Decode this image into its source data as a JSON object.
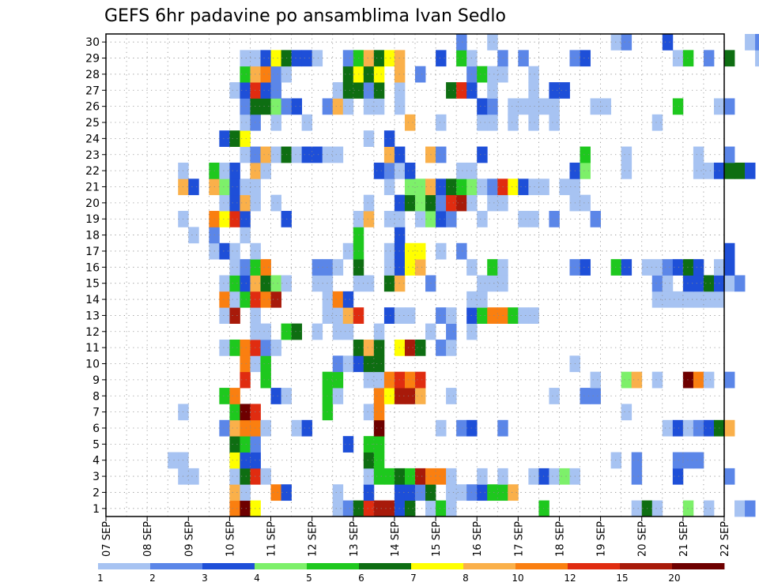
{
  "chart_data": {
    "type": "heatmap",
    "title": "GEFS 6hr padavine po ansamblima Ivan Sedlo",
    "y_categories": [
      "1",
      "2",
      "3",
      "4",
      "5",
      "6",
      "7",
      "8",
      "9",
      "10",
      "11",
      "12",
      "13",
      "14",
      "15",
      "16",
      "17",
      "18",
      "19",
      "20",
      "21",
      "22",
      "23",
      "24",
      "25",
      "26",
      "27",
      "28",
      "29",
      "30"
    ],
    "x_ticks": [
      "07 SEP",
      "08 SEP",
      "09 SEP",
      "10 SEP",
      "11 SEP",
      "12 SEP",
      "13 SEP",
      "14 SEP",
      "15 SEP",
      "16 SEP",
      "17 SEP",
      "18 SEP",
      "19 SEP",
      "20 SEP",
      "21 SEP",
      "22 SEP"
    ],
    "x_range": [
      "07 SEP 00Z",
      "22 SEP 00Z"
    ],
    "time_step": "6hr",
    "grid": true,
    "colorbar": {
      "placement": "bottom",
      "labels": [
        "1",
        "2",
        "3",
        "4",
        "5",
        "6",
        "7",
        "8",
        "10",
        "12",
        "15",
        "20"
      ],
      "colors": [
        "#a7c3f2",
        "#5b86e8",
        "#1e4fd8",
        "#7df06a",
        "#1ec81e",
        "#0e6e12",
        "#ffff00",
        "#fab04a",
        "#fa7f10",
        "#e02c10",
        "#a81a0a",
        "#6e0000"
      ]
    },
    "grid_values": {
      "30": {
        "34": 2,
        "37": 1,
        "49": 1,
        "50": 2,
        "54": 3,
        "62": 1,
        "63": 2
      },
      "29": {
        "13": 1,
        "14": 1,
        "15": 3,
        "16": 7,
        "17": 6,
        "18": 3,
        "19": 3,
        "20": 1,
        "23": 2,
        "24": 5,
        "25": 8,
        "26": 6,
        "27": 7,
        "28": 9,
        "32": 3,
        "34": 5,
        "35": 1,
        "38": 2,
        "40": 2,
        "45": 2,
        "46": 3,
        "55": 1,
        "56": 5,
        "58": 2,
        "60": 6,
        "63": 1,
        "64": 9,
        "65": 1,
        "66": 3,
        "67": 3
      },
      "28": {
        "13": 5,
        "14": 9,
        "15": 10,
        "16": 2,
        "17": 1,
        "23": 6,
        "24": 7,
        "25": 6,
        "26": 7,
        "28": 8,
        "30": 2,
        "35": 2,
        "36": 5,
        "37": 1,
        "38": 1,
        "41": 1
      },
      "27": {
        "12": 1,
        "13": 3,
        "14": 12,
        "15": 3,
        "16": 2,
        "22": 1,
        "23": 6,
        "24": 6,
        "25": 2,
        "26": 6,
        "28": 1,
        "33": 6,
        "34": 12,
        "35": 3,
        "37": 1,
        "41": 1,
        "43": 3,
        "44": 3
      },
      "26": {
        "13": 2,
        "14": 6,
        "15": 6,
        "16": 4,
        "17": 2,
        "18": 3,
        "21": 2,
        "22": 9,
        "23": 1,
        "25": 1,
        "26": 1,
        "28": 1,
        "36": 3,
        "37": 2,
        "39": 1,
        "40": 1,
        "41": 1,
        "42": 1,
        "43": 1,
        "47": 1,
        "48": 1,
        "55": 5,
        "59": 1,
        "60": 2
      },
      "25": {
        "13": 1,
        "14": 2,
        "16": 1,
        "19": 1,
        "29": 9,
        "32": 1,
        "36": 1,
        "37": 1,
        "39": 1,
        "41": 1,
        "43": 1,
        "53": 1
      },
      "24": {
        "11": 3,
        "12": 6,
        "13": 7,
        "25": 1,
        "27": 3
      },
      "23": {
        "13": 1,
        "14": 2,
        "15": 8,
        "16": 1,
        "17": 6,
        "18": 1,
        "19": 3,
        "20": 3,
        "21": 1,
        "22": 1,
        "27": 8,
        "28": 3,
        "31": 8,
        "32": 2,
        "36": 3,
        "46": 5,
        "50": 1,
        "57": 1,
        "60": 2
      },
      "22": {
        "7": 1,
        "10": 5,
        "11": 1,
        "12": 3,
        "14": 8,
        "15": 1,
        "26": 3,
        "27": 2,
        "28": 1,
        "29": 3,
        "34": 1,
        "35": 1,
        "45": 3,
        "46": 4,
        "50": 1,
        "57": 1,
        "58": 1,
        "59": 3,
        "60": 6,
        "61": 6,
        "62": 3
      },
      "21": {
        "7": 8,
        "8": 3,
        "10": 9,
        "11": 4,
        "12": 3,
        "13": 1,
        "14": 1,
        "27": 1,
        "29": 4,
        "30": 4,
        "31": 8,
        "32": 3,
        "33": 6,
        "34": 5,
        "35": 4,
        "36": 1,
        "37": 2,
        "38": 12,
        "39": 7,
        "40": 3,
        "41": 1,
        "42": 1,
        "44": 1,
        "45": 1
      },
      "20": {
        "11": 1,
        "12": 3,
        "13": 9,
        "14": 1,
        "16": 1,
        "25": 1,
        "28": 3,
        "29": 6,
        "30": 4,
        "31": 6,
        "32": 2,
        "33": 12,
        "34": 15,
        "35": 1,
        "37": 1,
        "38": 1,
        "45": 1,
        "46": 1
      },
      "19": {
        "7": 1,
        "10": 10,
        "11": 7,
        "12": 12,
        "13": 3,
        "17": 3,
        "24": 1,
        "25": 8,
        "27": 1,
        "28": 1,
        "30": 1,
        "31": 4,
        "32": 3,
        "33": 2,
        "36": 1,
        "40": 1,
        "41": 1,
        "43": 2,
        "47": 2
      },
      "18": {
        "8": 1,
        "10": 2,
        "13": 1,
        "24": 5,
        "28": 3
      },
      "17": {
        "10": 1,
        "11": 3,
        "12": 1,
        "14": 1,
        "23": 1,
        "24": 5,
        "27": 1,
        "28": 3,
        "29": 7,
        "30": 7,
        "32": 1,
        "34": 2,
        "60": 3
      },
      "16": {
        "12": 1,
        "13": 2,
        "14": 5,
        "15": 10,
        "20": 2,
        "21": 2,
        "22": 1,
        "24": 6,
        "27": 1,
        "28": 3,
        "29": 7,
        "30": 9,
        "35": 1,
        "37": 5,
        "38": 1,
        "45": 2,
        "46": 3,
        "49": 5,
        "50": 3,
        "52": 1,
        "53": 1,
        "54": 2,
        "55": 3,
        "56": 6,
        "57": 3,
        "59": 1,
        "60": 3
      },
      "15": {
        "11": 1,
        "12": 5,
        "13": 3,
        "14": 8,
        "15": 6,
        "16": 4,
        "17": 1,
        "20": 1,
        "21": 1,
        "24": 1,
        "25": 1,
        "27": 6,
        "28": 9,
        "31": 2,
        "36": 1,
        "37": 1,
        "38": 1,
        "53": 2,
        "54": 1,
        "56": 3,
        "57": 3,
        "58": 6,
        "59": 3,
        "60": 1,
        "61": 2
      },
      "14": {
        "11": 10,
        "12": 1,
        "13": 5,
        "14": 12,
        "15": 10,
        "16": 15,
        "21": 1,
        "22": 11,
        "23": 3,
        "35": 1,
        "36": 1,
        "53": 1,
        "54": 1,
        "55": 1,
        "56": 1,
        "57": 1,
        "58": 1,
        "59": 1
      },
      "13": {
        "11": 1,
        "12": 15,
        "14": 1,
        "21": 1,
        "22": 1,
        "23": 8,
        "24": 12,
        "27": 3,
        "28": 1,
        "29": 1,
        "32": 2,
        "33": 1,
        "35": 3,
        "36": 5,
        "37": 10,
        "38": 10,
        "39": 5,
        "40": 1,
        "41": 1
      },
      "12": {
        "14": 1,
        "15": 1,
        "17": 5,
        "18": 6,
        "20": 1,
        "22": 1,
        "23": 1,
        "26": 1,
        "31": 1,
        "33": 2,
        "35": 1
      },
      "11": {
        "11": 1,
        "12": 5,
        "13": 10,
        "14": 12,
        "15": 2,
        "16": 1,
        "24": 6,
        "25": 8,
        "26": 6,
        "28": 7,
        "29": 15,
        "30": 6,
        "32": 2,
        "33": 1
      },
      "10": {
        "13": 10,
        "14": 1,
        "15": 5,
        "22": 2,
        "23": 1,
        "24": 3,
        "25": 6,
        "26": 6,
        "45": 1
      },
      "9": {
        "13": 12,
        "15": 5,
        "21": 5,
        "22": 5,
        "25": 1,
        "26": 1,
        "27": 10,
        "28": 12,
        "29": 10,
        "30": 12,
        "47": 1,
        "50": 4,
        "51": 8,
        "53": 1,
        "56": 20,
        "57": 10,
        "58": 1,
        "60": 2
      },
      "8": {
        "11": 5,
        "12": 10,
        "16": 3,
        "17": 1,
        "21": 5,
        "22": 1,
        "26": 10,
        "27": 7,
        "28": 15,
        "29": 15,
        "30": 8,
        "33": 1,
        "43": 1,
        "46": 2,
        "47": 2
      },
      "7": {
        "7": 1,
        "12": 5,
        "13": 20,
        "14": 12,
        "21": 5,
        "25": 1,
        "26": 10,
        "50": 1
      },
      "6": {
        "11": 2,
        "12": 9,
        "13": 10,
        "14": 10,
        "15": 1,
        "18": 1,
        "19": 3,
        "26": 20,
        "32": 1,
        "34": 2,
        "35": 3,
        "38": 2,
        "54": 1,
        "55": 3,
        "56": 1,
        "57": 2,
        "58": 3,
        "59": 6,
        "60": 9
      },
      "5": {
        "12": 6,
        "13": 5,
        "14": 2,
        "23": 3,
        "25": 5,
        "26": 5
      },
      "4": {
        "6": 1,
        "7": 1,
        "12": 7,
        "13": 3,
        "14": 3,
        "25": 6,
        "26": 5,
        "49": 1,
        "51": 2,
        "55": 2,
        "56": 2,
        "57": 2
      },
      "3": {
        "7": 1,
        "8": 1,
        "12": 1,
        "13": 6,
        "14": 12,
        "15": 1,
        "25": 1,
        "26": 5,
        "27": 5,
        "28": 6,
        "29": 5,
        "30": 15,
        "31": 10,
        "32": 10,
        "33": 1,
        "36": 1,
        "38": 1,
        "41": 1,
        "42": 3,
        "43": 1,
        "44": 4,
        "45": 1,
        "51": 2,
        "55": 3,
        "60": 2
      },
      "2": {
        "12": 8,
        "13": 1,
        "16": 10,
        "17": 3,
        "22": 1,
        "25": 3,
        "28": 3,
        "29": 3,
        "30": 2,
        "31": 6,
        "33": 1,
        "34": 1,
        "35": 2,
        "36": 3,
        "37": 5,
        "38": 5,
        "39": 8
      },
      "1": {
        "12": 10,
        "13": 20,
        "14": 7,
        "22": 1,
        "23": 2,
        "24": 6,
        "25": 12,
        "26": 15,
        "27": 15,
        "28": 3,
        "29": 6,
        "31": 1,
        "32": 5,
        "33": 1,
        "42": 5,
        "51": 1,
        "52": 6,
        "53": 1,
        "56": 4,
        "58": 1,
        "61": 1,
        "62": 2
      }
    }
  }
}
